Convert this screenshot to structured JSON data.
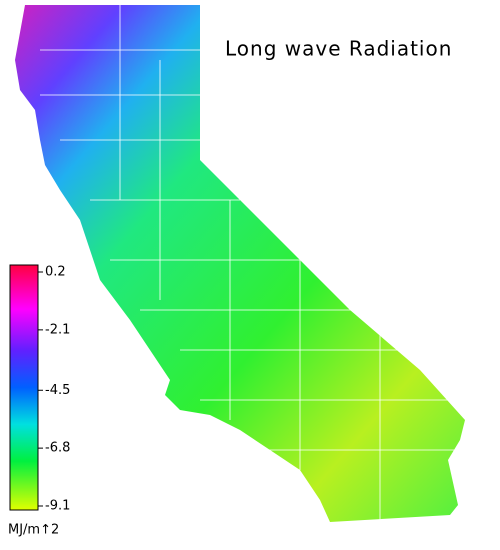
{
  "title": "Long wave Radiation",
  "colorbar": {
    "range": [
      -9.1,
      0.2
    ],
    "ticks": [
      0.2,
      -2.1,
      -4.5,
      -6.8,
      -9.1
    ],
    "unit": "MJ/m↑2"
  }
}
